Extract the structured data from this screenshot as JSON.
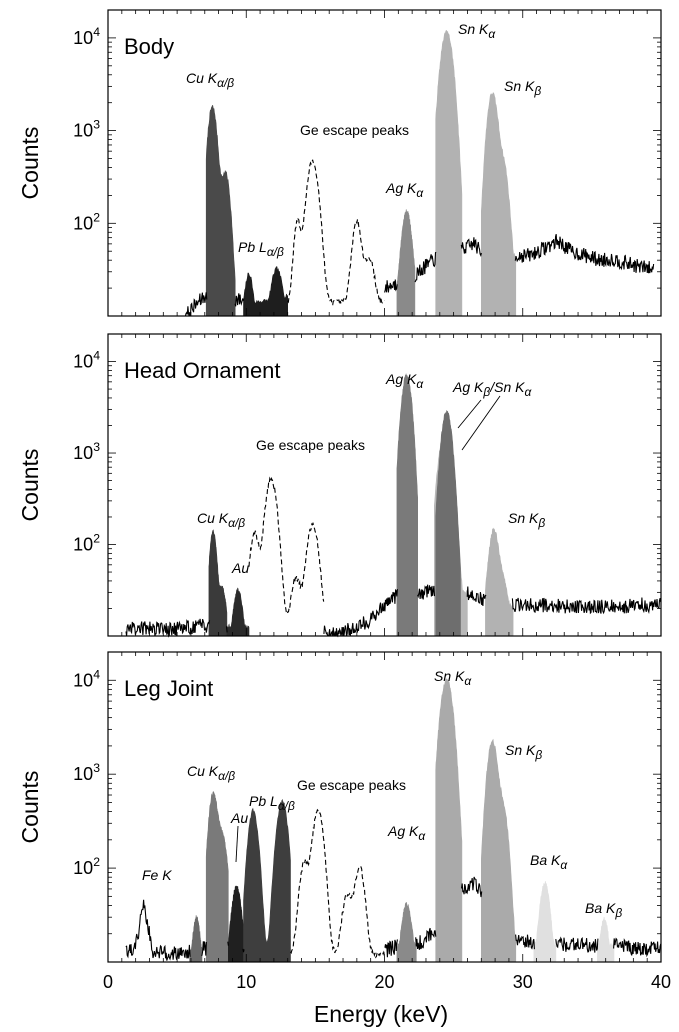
{
  "figure": {
    "xlabel": "Energy (keV)",
    "ylabel": "Counts",
    "x_ticks": [
      "0",
      "10",
      "20",
      "30",
      "40"
    ]
  },
  "chart_data": [
    {
      "type": "area",
      "title": "Body",
      "xlabel": "Energy (keV)",
      "ylabel": "Counts",
      "xlim": [
        0,
        40
      ],
      "ylim": [
        10,
        20000
      ],
      "y_scale": "log",
      "y_ticks": [
        "10^2",
        "10^3",
        "10^4"
      ],
      "grid": false,
      "background": {
        "x_start": 5.6,
        "x_end": 39.5,
        "points": [
          [
            5.6,
            10
          ],
          [
            6.5,
            14
          ],
          [
            7,
            16
          ],
          [
            9.5,
            15
          ],
          [
            10.5,
            14
          ],
          [
            12,
            15
          ],
          [
            13,
            17
          ],
          [
            18,
            20
          ],
          [
            20,
            20
          ],
          [
            22,
            26
          ],
          [
            23.5,
            40
          ],
          [
            25,
            52
          ],
          [
            26,
            55
          ],
          [
            26.5,
            62
          ],
          [
            27,
            46
          ],
          [
            29.5,
            45
          ],
          [
            30.5,
            45
          ],
          [
            31.5,
            53
          ],
          [
            32.5,
            65
          ],
          [
            33.5,
            50
          ],
          [
            34.5,
            45
          ],
          [
            35.5,
            40
          ],
          [
            36.5,
            41
          ],
          [
            37.5,
            37
          ],
          [
            38.5,
            34
          ],
          [
            39.5,
            32
          ]
        ]
      },
      "peaks": [
        {
          "label": "Cu K",
          "sub": "α/β",
          "color": "#4a4a4a",
          "x_start": 7.1,
          "x_end": 9.2,
          "components": [
            [
              7.55,
              1800,
              0.28
            ],
            [
              8.5,
              340,
              0.28
            ]
          ]
        },
        {
          "label": "Pb L",
          "sub": "α/β",
          "color": "#1e1e1e",
          "x_start": 9.8,
          "x_end": 13.0,
          "components": [
            [
              10.2,
              20,
              0.25
            ],
            [
              12.2,
              23,
              0.35
            ]
          ]
        },
        {
          "label": "Ag K",
          "sub": "α",
          "color": "#8a8a8a",
          "x_start": 20.9,
          "x_end": 22.2,
          "components": [
            [
              21.6,
              120,
              0.3
            ]
          ]
        },
        {
          "label": "Sn K",
          "sub": "α",
          "color": "#b2b2b2",
          "x_start": 23.7,
          "x_end": 25.6,
          "components": [
            [
              24.5,
              11500,
              0.38
            ]
          ]
        },
        {
          "label": "Sn K",
          "sub": "β",
          "color": "#b2b2b2",
          "x_start": 27.0,
          "x_end": 29.5,
          "components": [
            [
              27.8,
              2500,
              0.32
            ],
            [
              28.6,
              400,
              0.3
            ]
          ]
        }
      ],
      "escape": {
        "label": "Ge escape peaks",
        "x_start": 13.0,
        "x_end": 20.0,
        "components": [
          [
            13.7,
            90,
            0.22
          ],
          [
            14.8,
            450,
            0.35
          ],
          [
            18.0,
            90,
            0.28
          ],
          [
            18.9,
            28,
            0.3
          ]
        ],
        "floor": 14
      },
      "labels": [
        {
          "text": "Cu K",
          "sub": "α/β"
        },
        {
          "text": "Pb L",
          "sub": "α/β"
        },
        {
          "text": "Ge escape peaks"
        },
        {
          "text": "Ag K",
          "sub": "α"
        },
        {
          "text": "Sn K",
          "sub": "α"
        },
        {
          "text": "Sn K",
          "sub": "β"
        }
      ]
    },
    {
      "type": "area",
      "title": "Head Ornament",
      "xlabel": "Energy (keV)",
      "ylabel": "Counts",
      "xlim": [
        0,
        40
      ],
      "ylim": [
        10,
        20000
      ],
      "y_scale": "log",
      "y_ticks": [
        "10^2",
        "10^3",
        "10^4"
      ],
      "grid": false,
      "background": {
        "x_start": 1.3,
        "x_end": 40,
        "points": [
          [
            1.3,
            10
          ],
          [
            1.5,
            12
          ],
          [
            2,
            12
          ],
          [
            5,
            12
          ],
          [
            7,
            13
          ],
          [
            9.5,
            13
          ],
          [
            10.5,
            12
          ],
          [
            13.5,
            14
          ],
          [
            15.5,
            12
          ],
          [
            16,
            11
          ],
          [
            17,
            11
          ],
          [
            19,
            15
          ],
          [
            20,
            22
          ],
          [
            21,
            28
          ],
          [
            23,
            30
          ],
          [
            24,
            32
          ],
          [
            26,
            30
          ],
          [
            28,
            22
          ],
          [
            29.3,
            22
          ],
          [
            31,
            22
          ],
          [
            33,
            21
          ],
          [
            35,
            21
          ],
          [
            37,
            21
          ],
          [
            38.5,
            22
          ],
          [
            40,
            22
          ]
        ]
      },
      "peaks": [
        {
          "label": "Cu K",
          "sub": "α/β",
          "color": "#3a3a3a",
          "x_start": 7.3,
          "x_end": 8.6,
          "components": [
            [
              7.6,
              130,
              0.22
            ],
            [
              8.3,
              25,
              0.22
            ]
          ]
        },
        {
          "label": "Au",
          "color": "#2a2a2a",
          "x_start": 8.6,
          "x_end": 10.2,
          "components": [
            [
              9.4,
              24,
              0.28
            ]
          ]
        },
        {
          "label": "Ag K",
          "sub": "α",
          "color": "#7a7a7a",
          "x_start": 20.9,
          "x_end": 22.4,
          "components": [
            [
              21.6,
              7000,
              0.32
            ]
          ]
        },
        {
          "label": "Ag K",
          "sub": "β",
          "color": "#b8b8b8",
          "x_start": 23.6,
          "x_end": 26.0,
          "components": [
            [
              24.4,
              1800,
              0.4
            ]
          ]
        },
        {
          "label": "Sn K",
          "sub": "α",
          "color": "#6e6e6e",
          "x_start": 23.7,
          "x_end": 25.5,
          "components": [
            [
              24.5,
              2800,
              0.34
            ]
          ]
        },
        {
          "label": "Sn K",
          "sub": "β",
          "color": "#b2b2b2",
          "x_start": 27.3,
          "x_end": 29.3,
          "components": [
            [
              27.9,
              130,
              0.3
            ],
            [
              28.6,
              25,
              0.3
            ]
          ]
        }
      ],
      "escape": {
        "label": "Ge escape peaks",
        "x_start": 10.2,
        "x_end": 15.6,
        "components": [
          [
            10.6,
            120,
            0.28
          ],
          [
            11.8,
            500,
            0.35
          ],
          [
            13.6,
            30,
            0.28
          ],
          [
            14.8,
            150,
            0.35
          ]
        ],
        "floor": 13
      },
      "labels": [
        {
          "text": "Cu K",
          "sub": "α/β"
        },
        {
          "text": "Au"
        },
        {
          "text": "Ge escape peaks"
        },
        {
          "text": "Ag K",
          "sub": "α"
        },
        {
          "text": "Ag K",
          "sub": "β",
          "text2": "/Sn K",
          "sub2": "α"
        },
        {
          "text": "Sn K",
          "sub": "β"
        }
      ]
    },
    {
      "type": "area",
      "title": "Leg Joint",
      "xlabel": "Energy (keV)",
      "ylabel": "Counts",
      "xlim": [
        0,
        40
      ],
      "ylim": [
        10,
        20000
      ],
      "y_scale": "log",
      "y_ticks": [
        "10^2",
        "10^3",
        "10^4"
      ],
      "grid": false,
      "background": {
        "x_start": 1.3,
        "x_end": 40,
        "points": [
          [
            1.3,
            13
          ],
          [
            1.8,
            13
          ],
          [
            2.2,
            20
          ],
          [
            2.5,
            42
          ],
          [
            2.8,
            30
          ],
          [
            3.2,
            13
          ],
          [
            4.5,
            12
          ],
          [
            5.5,
            13
          ],
          [
            6.2,
            13
          ],
          [
            7,
            14
          ],
          [
            9.5,
            15
          ],
          [
            13,
            16
          ],
          [
            14,
            12
          ],
          [
            15.3,
            12
          ],
          [
            16.5,
            13
          ],
          [
            17.5,
            13
          ],
          [
            19,
            12
          ],
          [
            20,
            13
          ],
          [
            21,
            15
          ],
          [
            22.5,
            16
          ],
          [
            23.5,
            20
          ],
          [
            25.6,
            60
          ],
          [
            26.5,
            70
          ],
          [
            27,
            55
          ],
          [
            27.8,
            40
          ],
          [
            29.5,
            18
          ],
          [
            30.5,
            16
          ],
          [
            32,
            16
          ],
          [
            34,
            15
          ],
          [
            35,
            15
          ],
          [
            36.5,
            15
          ],
          [
            38,
            14
          ],
          [
            40,
            14
          ]
        ]
      },
      "peaks": [
        {
          "label": "Fe K",
          "color": "#6a6a6a",
          "x_start": 5.9,
          "x_end": 6.8,
          "components": [
            [
              6.4,
              22,
              0.22
            ]
          ]
        },
        {
          "label": "Cu K",
          "sub": "α/β",
          "color": "#7a7a7a",
          "x_start": 7.1,
          "x_end": 8.7,
          "components": [
            [
              7.6,
              600,
              0.28
            ],
            [
              8.3,
              200,
              0.3
            ]
          ]
        },
        {
          "label": "Au",
          "color": "#202020",
          "x_start": 8.7,
          "x_end": 9.8,
          "components": [
            [
              9.3,
              55,
              0.3
            ]
          ]
        },
        {
          "label": "Pb L",
          "sub": "α/β",
          "color": "#3e3e3e",
          "x_start": 9.8,
          "x_end": 13.2,
          "components": [
            [
              10.5,
              400,
              0.32
            ],
            [
              12.6,
              500,
              0.35
            ]
          ]
        },
        {
          "label": "Ag K",
          "sub": "α",
          "color": "#8a8a8a",
          "x_start": 20.9,
          "x_end": 22.3,
          "components": [
            [
              21.6,
              32,
              0.3
            ]
          ]
        },
        {
          "label": "Sn K",
          "sub": "α",
          "color": "#aaaaaa",
          "x_start": 23.7,
          "x_end": 25.6,
          "components": [
            [
              24.5,
              10000,
              0.38
            ]
          ]
        },
        {
          "label": "Sn K",
          "sub": "β",
          "color": "#aaaaaa",
          "x_start": 27.0,
          "x_end": 29.5,
          "components": [
            [
              27.8,
              2200,
              0.32
            ],
            [
              28.6,
              400,
              0.3
            ]
          ]
        },
        {
          "label": "Ba K",
          "sub": "α",
          "color": "#e0e0e0",
          "x_start": 30.8,
          "x_end": 32.4,
          "components": [
            [
              31.6,
              60,
              0.3
            ]
          ]
        },
        {
          "label": "Ba K",
          "sub": "β",
          "color": "#e0e0e0",
          "x_start": 35.4,
          "x_end": 36.6,
          "components": [
            [
              35.9,
              20,
              0.25
            ]
          ]
        }
      ],
      "escape": {
        "label": "Ge escape peaks",
        "x_start": 13.2,
        "x_end": 20.0,
        "components": [
          [
            14.2,
            100,
            0.3
          ],
          [
            15.2,
            400,
            0.33
          ],
          [
            17.3,
            40,
            0.3
          ],
          [
            18.2,
            90,
            0.3
          ]
        ],
        "floor": 12
      },
      "labels": [
        {
          "text": "Fe K"
        },
        {
          "text": "Cu K",
          "sub": "α/β"
        },
        {
          "text": "Au"
        },
        {
          "text": "Pb L",
          "sub": "α/β"
        },
        {
          "text": "Ge escape peaks"
        },
        {
          "text": "Ag K",
          "sub": "α"
        },
        {
          "text": "Sn K",
          "sub": "α"
        },
        {
          "text": "Sn K",
          "sub": "β"
        },
        {
          "text": "Ba K",
          "sub": "α"
        },
        {
          "text": "Ba K",
          "sub": "β"
        }
      ]
    }
  ]
}
